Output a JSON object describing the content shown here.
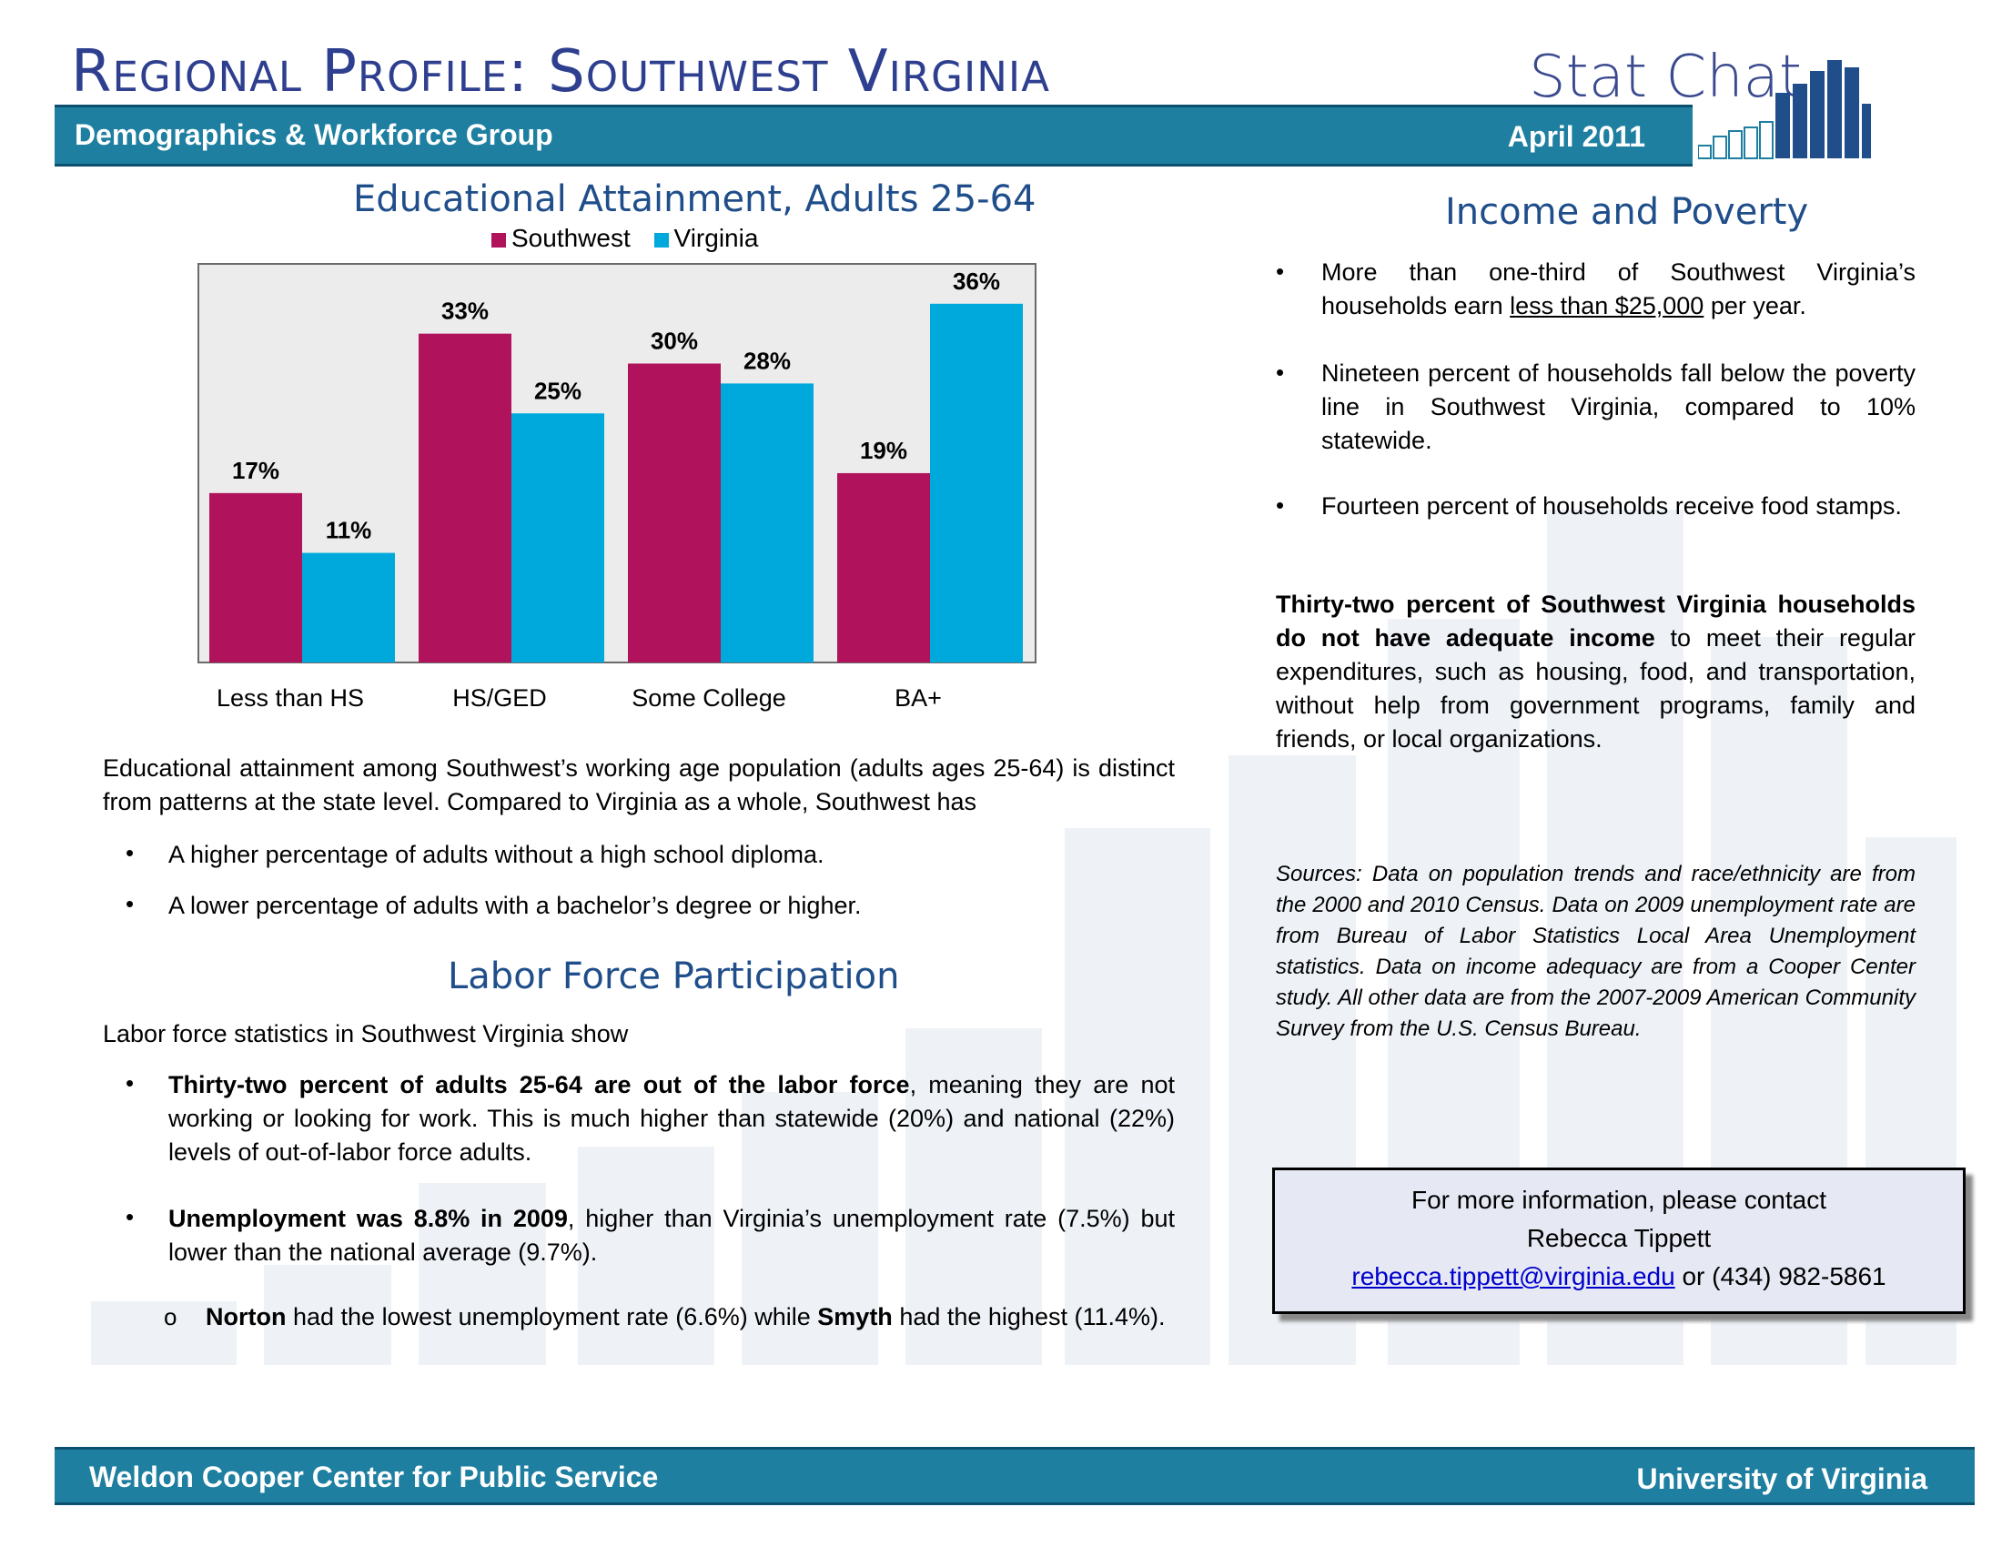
{
  "header": {
    "title": "Regional Profile: Southwest Virginia",
    "brand": "Stat Chat",
    "group": "Demographics & Workforce Group",
    "date": "April 2011"
  },
  "chart_section": {
    "heading": "Educational Attainment, Adults 25-64"
  },
  "chart_data": {
    "type": "bar",
    "title": "Educational Attainment, Adults 25-64",
    "categories": [
      "Less than HS",
      "HS/GED",
      "Some College",
      "BA+"
    ],
    "series": [
      {
        "name": "Southwest",
        "values": [
          17,
          33,
          30,
          19
        ],
        "labels": [
          "17%",
          "33%",
          "30%",
          "19%"
        ],
        "color": "#b0135c"
      },
      {
        "name": "Virginia",
        "values": [
          11,
          25,
          28,
          36
        ],
        "labels": [
          "11%",
          "25%",
          "28%",
          "36%"
        ],
        "color": "#00a9dc"
      }
    ],
    "ylim": [
      0,
      40
    ],
    "legend": "top",
    "grid": false
  },
  "education": {
    "paragraph": "Educational attainment among Southwest’s working age population (adults ages 25-64) is distinct from patterns at the state level.  Compared to Virginia as a whole, Southwest has",
    "bullets": [
      "A higher percentage of adults without a high school diploma.",
      "A lower percentage of adults with a bachelor’s degree or higher."
    ]
  },
  "labor": {
    "heading": "Labor Force Participation",
    "intro": "Labor force statistics in Southwest Virginia show",
    "b1_bold": "Thirty-two percent of adults 25-64 are out of the labor force",
    "b1_rest": ", meaning they are not working or looking for work.  This is much higher than statewide (20%) and national (22%) levels of out-of-labor force adults.",
    "b2_bold": "Unemployment was 8.8% in 2009",
    "b2_rest": ", higher than Virginia’s unemployment rate (7.5%) but lower than the national average (9.7%).",
    "sub_marker": "o",
    "sub_bold1": "Norton",
    "sub_mid": " had the lowest unemployment rate (6.6%) while ",
    "sub_bold2": "Smyth",
    "sub_end": " had the highest (11.4%)."
  },
  "income": {
    "heading": "Income and Poverty",
    "b1_pre": "More than one-third of Southwest Virginia’s households earn ",
    "b1_u": "less than $25,000",
    "b1_post": " per year.",
    "b2": "Nineteen percent of households fall below the poverty line in Southwest Virginia, compared to 10% statewide.",
    "b3": "Fourteen percent of households receive food stamps.",
    "p_bold": "Thirty-two percent of Southwest Virginia households do not have adequate income",
    "p_rest": " to meet their regular expenditures, such as housing, food, and transportation, without help from government programs, family and friends, or local organizations."
  },
  "sources": "Sources: Data on population trends and race/ethnicity are from the 2000 and 2010 Census. Data on 2009 unemployment rate are from Bureau of Labor Statistics Local Area Unemployment statistics. Data on income adequacy are from a Cooper Center study. All other data are from the 2007-2009 American Community Survey from the U.S. Census Bureau.",
  "contact": {
    "line1": "For more information, please contact",
    "name": "Rebecca Tippett",
    "email": "rebecca.tippett@virginia.edu",
    "or": " or ",
    "phone": "(434) 982-5861"
  },
  "footer": {
    "left": "Weldon Cooper Center for Public Service",
    "right": "University of Virginia"
  },
  "bullet_char": "•"
}
